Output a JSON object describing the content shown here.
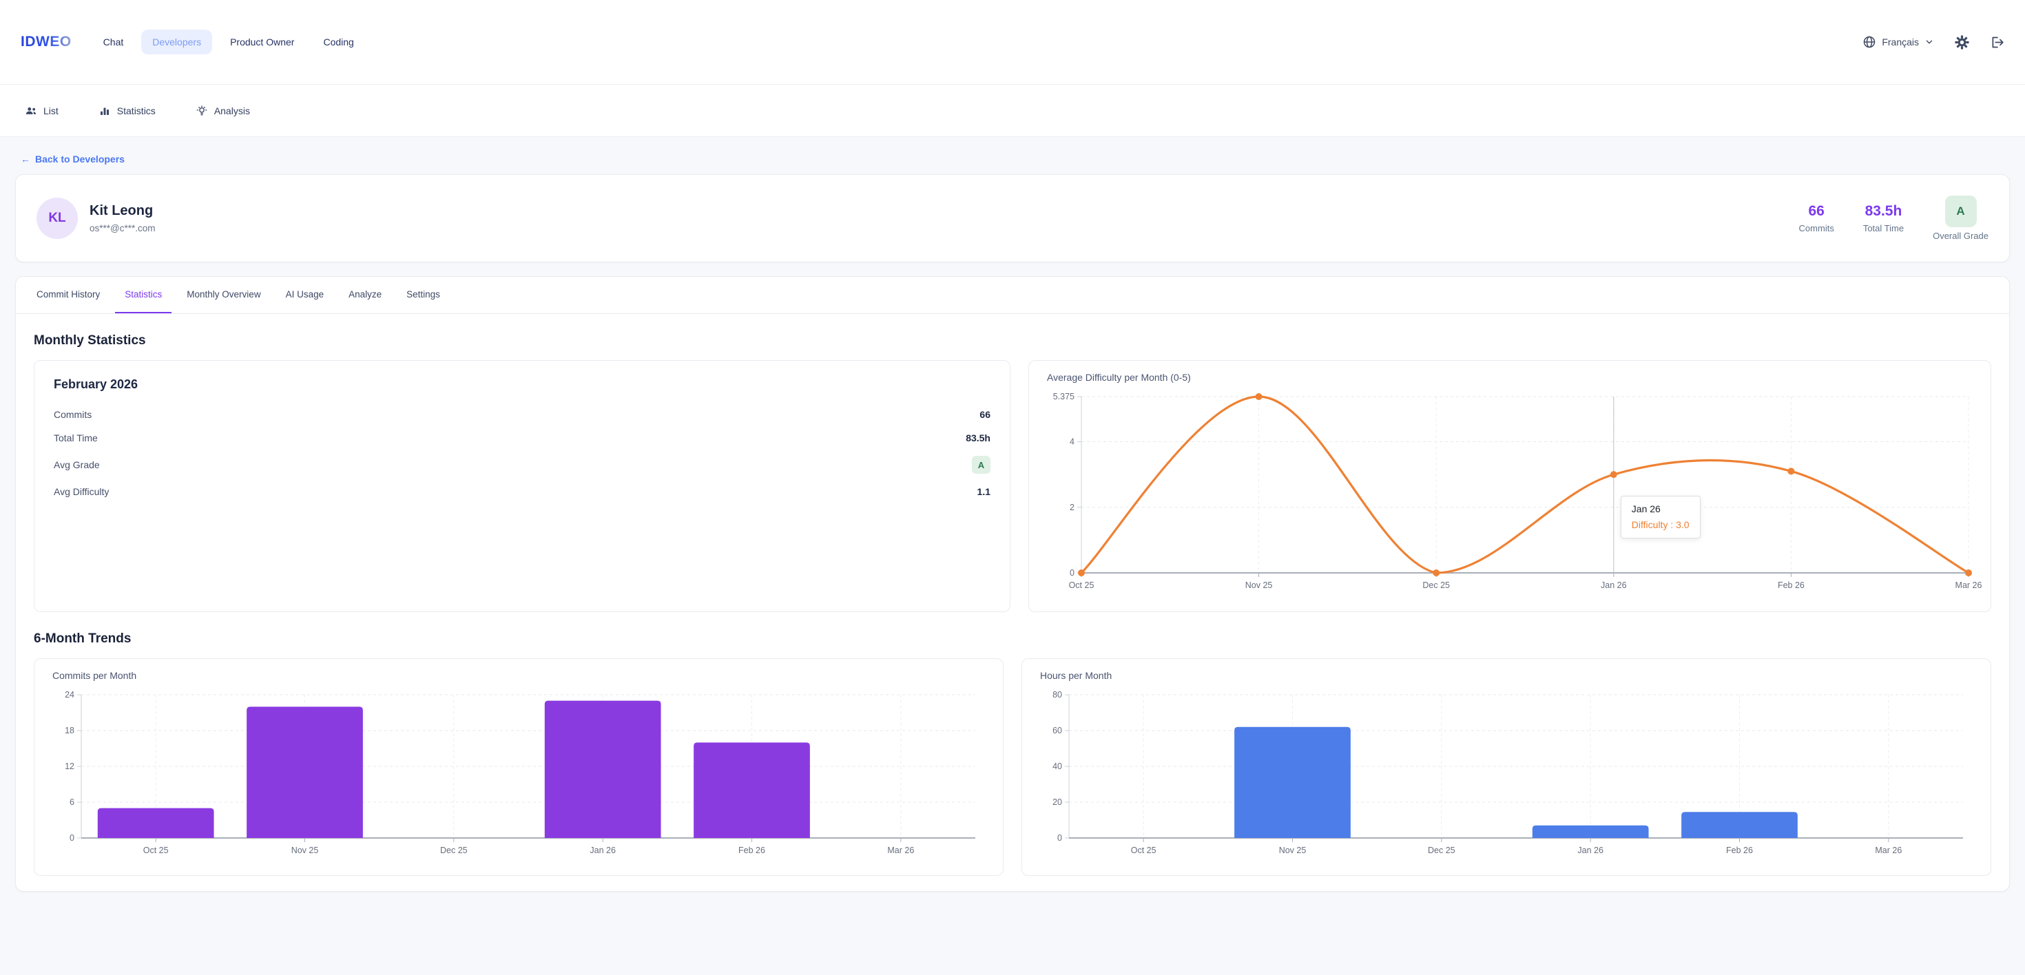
{
  "brand": {
    "logo_text": "IDWEO"
  },
  "topnav": {
    "items": [
      {
        "label": "Chat"
      },
      {
        "label": "Developers"
      },
      {
        "label": "Product Owner"
      },
      {
        "label": "Coding"
      }
    ],
    "language": "Français"
  },
  "subnav": {
    "items": [
      {
        "label": "List",
        "icon": "users-icon"
      },
      {
        "label": "Statistics",
        "icon": "bar-chart-icon"
      },
      {
        "label": "Analysis",
        "icon": "lightbulb-icon"
      }
    ]
  },
  "back_link": {
    "arrow": "←",
    "label": "Back to Developers"
  },
  "profile": {
    "initials": "KL",
    "name": "Kit Leong",
    "email": "os***@c***.com",
    "stats": {
      "commits_value": "66",
      "commits_label": "Commits",
      "time_value": "83.5h",
      "time_label": "Total Time",
      "grade_value": "A",
      "grade_label": "Overall Grade"
    }
  },
  "tabs": {
    "items": [
      {
        "label": "Commit History"
      },
      {
        "label": "Statistics"
      },
      {
        "label": "Monthly Overview"
      },
      {
        "label": "AI Usage"
      },
      {
        "label": "Analyze"
      },
      {
        "label": "Settings"
      }
    ]
  },
  "sections": {
    "monthly_statistics": {
      "heading": "Monthly Statistics",
      "card_title": "February 2026",
      "rows": [
        {
          "label": "Commits",
          "value": "66"
        },
        {
          "label": "Total Time",
          "value": "83.5h"
        },
        {
          "label": "Avg Grade",
          "value": "A"
        },
        {
          "label": "Avg Difficulty",
          "value": "1.1"
        }
      ]
    },
    "trends": {
      "heading": "6-Month Trends"
    }
  },
  "chart_data": [
    {
      "type": "line",
      "title": "Average Difficulty per Month (0-5)",
      "x": [
        "Oct 25",
        "Nov 25",
        "Dec 25",
        "Jan 26",
        "Feb 26",
        "Mar 26"
      ],
      "values": [
        0,
        5.375,
        0,
        3.0,
        3.1,
        0
      ],
      "yticks": [
        0,
        2,
        4,
        5.375
      ],
      "ylim": [
        0,
        5.375
      ],
      "xlabel": "",
      "ylabel": "",
      "grid": true,
      "legend": "none",
      "smooth": true,
      "color": "#ee8133",
      "tooltip": {
        "title": "Jan 26",
        "text": "Difficulty : 3.0",
        "x_index": 3
      }
    },
    {
      "type": "bar",
      "title": "Commits per Month",
      "categories": [
        "Oct 25",
        "Nov 25",
        "Dec 25",
        "Jan 26",
        "Feb 26",
        "Mar 26"
      ],
      "values": [
        5,
        22,
        0,
        23,
        16,
        0
      ],
      "yticks": [
        0,
        6,
        12,
        18,
        24
      ],
      "ylim": [
        0,
        24
      ],
      "xlabel": "",
      "ylabel": "",
      "grid": true,
      "legend": "none",
      "color": "#8a3be0"
    },
    {
      "type": "bar",
      "title": "Hours per Month",
      "categories": [
        "Oct 25",
        "Nov 25",
        "Dec 25",
        "Jan 26",
        "Feb 26",
        "Mar 26"
      ],
      "values": [
        0,
        62,
        0,
        7,
        14.5,
        0
      ],
      "yticks": [
        0,
        20,
        40,
        60,
        80
      ],
      "ylim": [
        0,
        80
      ],
      "xlabel": "",
      "ylabel": "",
      "grid": true,
      "legend": "none",
      "color": "#4d7de9"
    }
  ],
  "colors": {
    "accent_purple": "#7c3aed",
    "accent_blue": "#4d7de9",
    "accent_orange": "#ee8133",
    "grade_green": "#2c7a52",
    "grade_green_bg": "#e0f0e5",
    "active_nav_bg": "#e9effe",
    "active_nav_text": "#7e9cf6",
    "background": "#f7f8fb"
  }
}
